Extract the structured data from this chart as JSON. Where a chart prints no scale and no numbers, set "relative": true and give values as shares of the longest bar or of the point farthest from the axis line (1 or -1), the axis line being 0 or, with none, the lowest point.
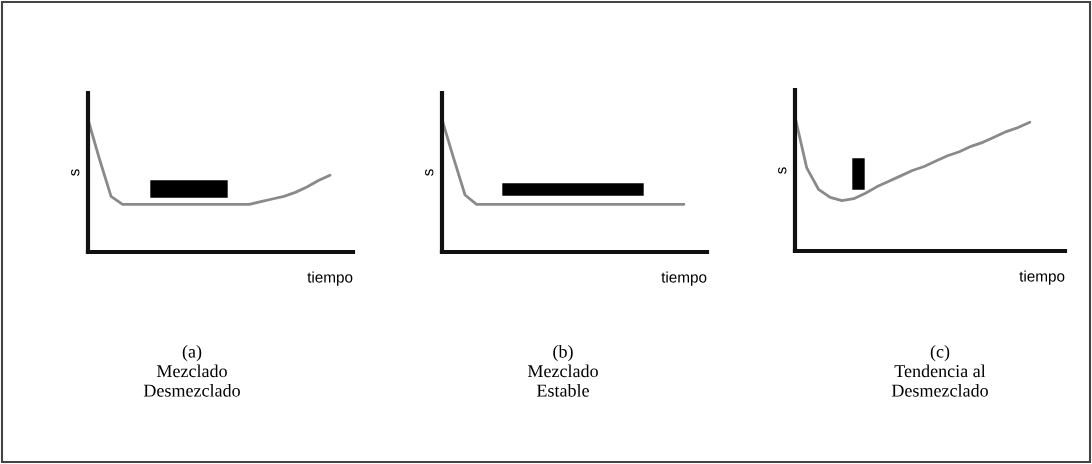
{
  "chart_data": [
    {
      "type": "line",
      "relative": true,
      "ylabel": "s",
      "xlabel": "tiempo",
      "annotations": [
        "(a)\nMezclado\nDesmezclado"
      ],
      "categories": [
        null,
        null,
        null,
        null,
        null,
        null,
        null,
        null,
        null,
        null,
        null,
        null,
        null,
        null,
        null,
        null,
        null,
        null,
        null,
        null,
        null,
        null,
        null,
        null
      ],
      "series": [
        {
          "color": "#8a8a8a",
          "values": [
            1.0,
            0.7,
            0.42,
            0.36,
            0.36,
            0.36,
            0.36,
            0.36,
            0.36,
            0.36,
            0.36,
            0.36,
            0.36,
            0.36,
            0.36,
            0.38,
            0.4,
            0.42,
            0.45,
            0.49,
            0.54,
            0.58,
            null,
            null
          ]
        }
      ]
    },
    {
      "type": "line",
      "relative": true,
      "ylabel": "s",
      "xlabel": "tiempo",
      "annotations": [
        "(b)\nMezclado\nEstable"
      ],
      "categories": [
        null,
        null,
        null,
        null,
        null,
        null,
        null,
        null,
        null,
        null,
        null,
        null,
        null,
        null,
        null,
        null,
        null,
        null,
        null,
        null,
        null,
        null,
        null,
        null
      ],
      "series": [
        {
          "color": "#8a8a8a",
          "values": [
            1.0,
            0.71,
            0.43,
            0.36,
            0.36,
            0.36,
            0.36,
            0.36,
            0.36,
            0.36,
            0.36,
            0.36,
            0.36,
            0.36,
            0.36,
            0.36,
            0.36,
            0.36,
            0.36,
            0.36,
            0.36,
            0.36,
            null,
            null
          ]
        }
      ]
    },
    {
      "type": "line",
      "relative": true,
      "ylabel": "s",
      "xlabel": "tiempo",
      "annotations": [
        "(c)\nTendencia al\nDesmezclado"
      ],
      "categories": [
        null,
        null,
        null,
        null,
        null,
        null,
        null,
        null,
        null,
        null,
        null,
        null,
        null,
        null,
        null,
        null,
        null,
        null,
        null,
        null,
        null,
        null,
        null,
        null
      ],
      "series": [
        {
          "color": "#8a8a8a",
          "values": [
            1.0,
            0.62,
            0.46,
            0.4,
            0.375,
            0.39,
            0.43,
            0.48,
            0.52,
            0.56,
            0.6,
            0.63,
            0.67,
            0.71,
            0.74,
            0.78,
            0.81,
            0.85,
            0.89,
            0.92,
            0.96,
            null,
            null,
            null
          ]
        }
      ]
    }
  ]
}
